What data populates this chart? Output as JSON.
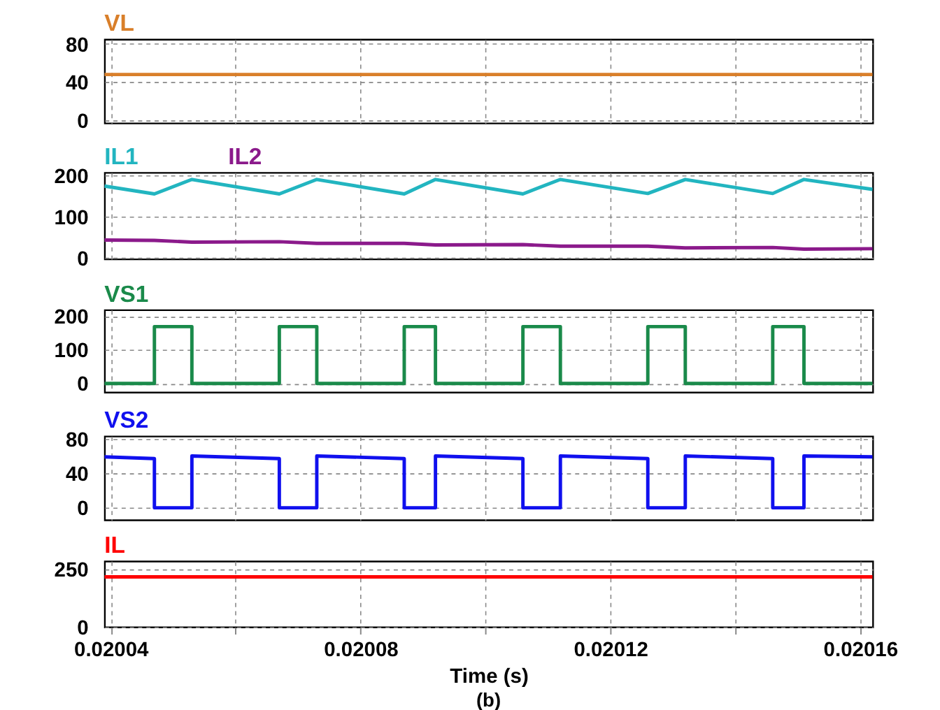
{
  "chart_data": [
    {
      "type": "line",
      "xlim": [
        0.020039,
        0.020162
      ],
      "xticks": [
        0.02004,
        {
          "value": 0.02006,
          "label": null
        },
        0.02008,
        {
          "value": 0.0201,
          "label": null
        },
        0.02012,
        {
          "value": 0.02014,
          "label": null
        },
        0.02016
      ],
      "ylim": [
        -3,
        85
      ],
      "yticks": [
        0,
        40,
        80
      ],
      "grid": true,
      "tick_labels": "y",
      "series": [
        {
          "name": "VL",
          "color": "#d97f2a",
          "x": [
            0.020039,
            0.020162
          ],
          "values": [
            48,
            48
          ]
        }
      ]
    },
    {
      "type": "line",
      "xlim": [
        0.020039,
        0.020162
      ],
      "xticks": [
        0.02004,
        {
          "value": 0.02006,
          "label": null
        },
        0.02008,
        {
          "value": 0.0201,
          "label": null
        },
        0.02012,
        {
          "value": 0.02014,
          "label": null
        },
        0.02016
      ],
      "ylim": [
        -3,
        207
      ],
      "yticks": [
        0,
        100,
        200
      ],
      "grid": true,
      "tick_labels": "y",
      "series": [
        {
          "name": "IL1",
          "color": "#22b5c0",
          "x": [
            0.020039,
            0.020047,
            0.020053,
            0.020067,
            0.020073,
            0.020087,
            0.020092,
            0.020106,
            0.020112,
            0.020126,
            0.020132,
            0.020146,
            0.020151,
            0.020162
          ],
          "values": [
            174,
            155,
            190,
            155,
            190,
            155,
            190,
            155,
            190,
            156,
            190,
            156,
            190,
            166
          ]
        },
        {
          "name": "IL2",
          "color": "#8b1a8b",
          "x": [
            0.020039,
            0.020047,
            0.020053,
            0.020067,
            0.020073,
            0.020087,
            0.020092,
            0.020106,
            0.020112,
            0.020126,
            0.020132,
            0.020146,
            0.020151,
            0.020162
          ],
          "values": [
            43,
            42,
            38,
            39,
            35,
            35,
            31,
            32,
            28,
            28,
            24,
            25,
            21,
            22
          ]
        }
      ]
    },
    {
      "type": "line",
      "xlim": [
        0.020039,
        0.020162
      ],
      "xticks": [
        0.02004,
        {
          "value": 0.02006,
          "label": null
        },
        0.02008,
        {
          "value": 0.0201,
          "label": null
        },
        0.02012,
        {
          "value": 0.02014,
          "label": null
        },
        0.02016
      ],
      "ylim": [
        -26,
        219
      ],
      "yticks": [
        0,
        100,
        200
      ],
      "grid": true,
      "tick_labels": "y",
      "series": [
        {
          "name": "VS1",
          "color": "#1a8a4a",
          "x": [
            0.020039,
            0.020047,
            0.020047,
            0.020053,
            0.020053,
            0.020067,
            0.020067,
            0.020073,
            0.020073,
            0.020087,
            0.020087,
            0.020092,
            0.020092,
            0.020106,
            0.020106,
            0.020112,
            0.020112,
            0.020126,
            0.020126,
            0.020132,
            0.020132,
            0.020146,
            0.020146,
            0.020151,
            0.020151,
            0.020162
          ],
          "values": [
            0,
            0,
            169,
            169,
            0,
            0,
            169,
            169,
            0,
            0,
            169,
            169,
            0,
            0,
            169,
            169,
            0,
            0,
            169,
            169,
            0,
            0,
            169,
            169,
            0,
            0
          ]
        }
      ]
    },
    {
      "type": "line",
      "xlim": [
        0.020039,
        0.020162
      ],
      "xticks": [
        0.02004,
        {
          "value": 0.02006,
          "label": null
        },
        0.02008,
        {
          "value": 0.0201,
          "label": null
        },
        0.02012,
        {
          "value": 0.02014,
          "label": null
        },
        0.02016
      ],
      "ylim": [
        -14,
        83
      ],
      "yticks": [
        0,
        40,
        80
      ],
      "grid": true,
      "tick_labels": "y",
      "series": [
        {
          "name": "VS2",
          "color": "#1010ee",
          "x": [
            0.020039,
            0.020047,
            0.020047,
            0.020053,
            0.020053,
            0.020067,
            0.020067,
            0.020073,
            0.020073,
            0.020087,
            0.020087,
            0.020092,
            0.020092,
            0.020106,
            0.020106,
            0.020112,
            0.020112,
            0.020126,
            0.020126,
            0.020132,
            0.020132,
            0.020146,
            0.020146,
            0.020151,
            0.020151,
            0.020162
          ],
          "values": [
            59,
            57,
            0,
            0,
            60,
            57,
            0,
            0,
            60,
            57,
            0,
            0,
            60,
            57,
            0,
            0,
            60,
            57,
            0,
            0,
            60,
            57,
            0,
            0,
            60,
            59
          ]
        }
      ]
    },
    {
      "type": "line",
      "xlim": [
        0.020039,
        0.020162
      ],
      "xticks": [
        0.02004,
        {
          "value": 0.02006,
          "label": null
        },
        0.02008,
        {
          "value": 0.0201,
          "label": null
        },
        0.02012,
        {
          "value": 0.02014,
          "label": null
        },
        0.02016
      ],
      "ylim": [
        0,
        283
      ],
      "yticks": [
        0,
        250
      ],
      "grid": true,
      "xlabel": "Time (s)",
      "annotations": [
        "(b)"
      ],
      "series": [
        {
          "name": "IL",
          "color": "#ff0000",
          "x": [
            0.020039,
            0.020162
          ],
          "values": [
            215,
            215
          ]
        }
      ]
    }
  ]
}
